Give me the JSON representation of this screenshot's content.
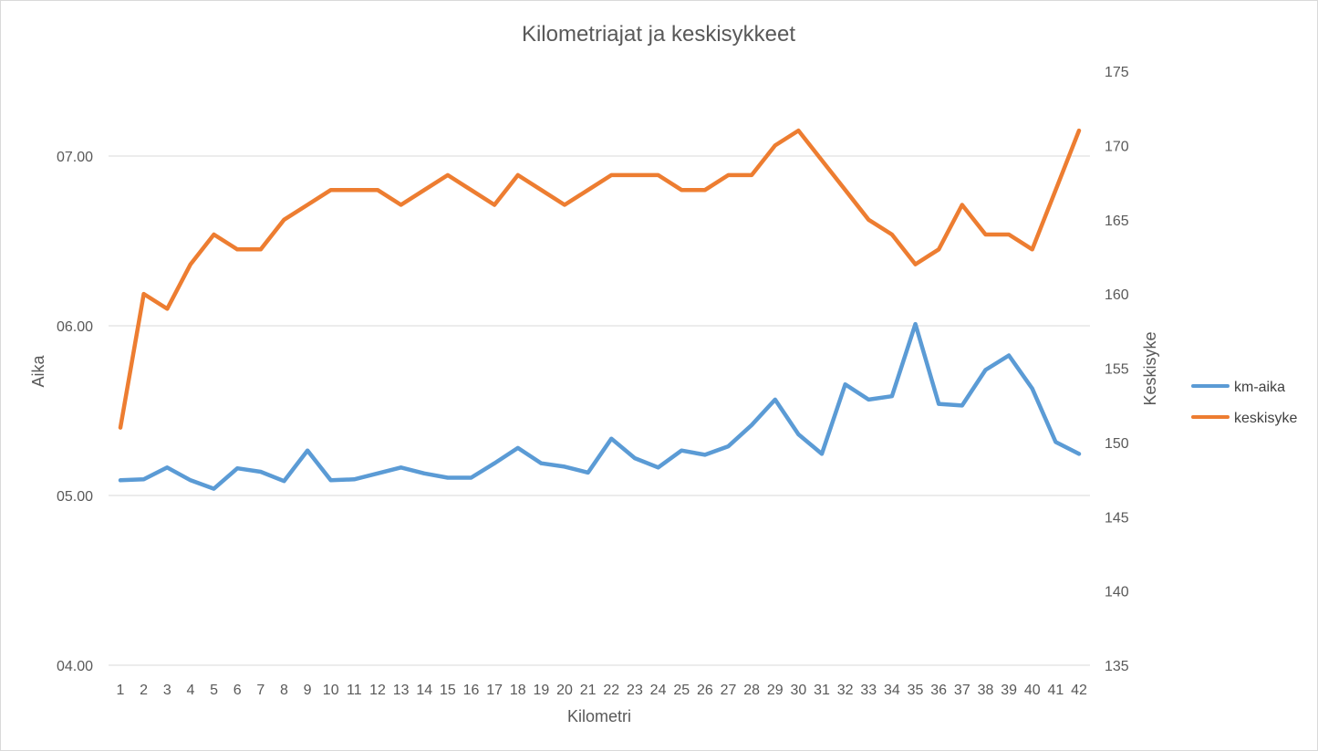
{
  "chart_data": {
    "type": "line",
    "title": "Kilometriajat ja keskisykkeet",
    "xlabel": "Kilometri",
    "ylabel_left": "Aika",
    "ylabel_right": "Keskisyke",
    "x": [
      1,
      2,
      3,
      4,
      5,
      6,
      7,
      8,
      9,
      10,
      11,
      12,
      13,
      14,
      15,
      16,
      17,
      18,
      19,
      20,
      21,
      22,
      23,
      24,
      25,
      26,
      27,
      28,
      29,
      30,
      31,
      32,
      33,
      34,
      35,
      36,
      37,
      38,
      39,
      40,
      41,
      42
    ],
    "y_left": {
      "min": 4.0,
      "max": 7.5,
      "tick_values": [
        4.0,
        5.0,
        6.0,
        7.0
      ],
      "tick_labels": [
        "04.00",
        "05.00",
        "06.00",
        "07.00"
      ]
    },
    "y_right": {
      "min": 135,
      "max": 175,
      "tick_values": [
        135,
        140,
        145,
        150,
        155,
        160,
        165,
        170,
        175
      ],
      "tick_labels": [
        "135",
        "140",
        "145",
        "150",
        "155",
        "160",
        "165",
        "170",
        "175"
      ]
    },
    "grid": true,
    "legend_position": "right",
    "series": [
      {
        "name": "km-aika",
        "axis": "left",
        "color": "#5b9bd5",
        "values": [
          5.09,
          5.095,
          5.165,
          5.09,
          5.04,
          5.16,
          5.14,
          5.085,
          5.265,
          5.09,
          5.095,
          5.13,
          5.165,
          5.13,
          5.105,
          5.105,
          5.19,
          5.28,
          5.19,
          5.17,
          5.135,
          5.335,
          5.22,
          5.165,
          5.265,
          5.24,
          5.29,
          5.415,
          5.565,
          5.36,
          5.245,
          5.655,
          5.565,
          5.585,
          6.01,
          5.54,
          5.53,
          5.74,
          5.825,
          5.63,
          5.315,
          5.245
        ]
      },
      {
        "name": "keskisyke",
        "axis": "right",
        "color": "#ed7d31",
        "values": [
          151,
          160,
          159,
          162,
          164,
          163,
          163,
          165,
          166,
          167,
          167,
          167,
          166,
          167,
          168,
          167,
          166,
          168,
          167,
          166,
          167,
          168,
          168,
          168,
          167,
          167,
          168,
          168,
          170,
          171,
          169,
          167,
          165,
          164,
          162,
          163,
          166,
          164,
          164,
          163,
          167,
          171
        ]
      }
    ]
  }
}
